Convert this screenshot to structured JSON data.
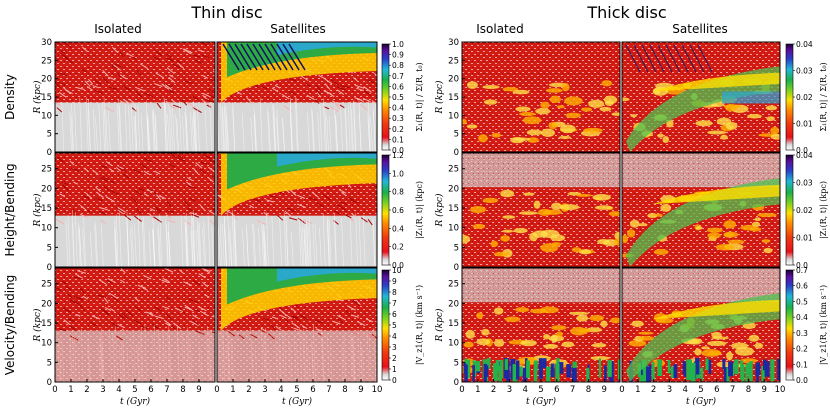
{
  "chart_data": {
    "type": "heatmap",
    "groups": [
      {
        "title": "Thin disc",
        "columns": [
          "Isolated",
          "Satellites"
        ],
        "xlabel": "t (Gyr)",
        "xlim": [
          0,
          10
        ],
        "xticks_left": [
          "0",
          "1",
          "2",
          "3",
          "4",
          "5",
          "6",
          "7",
          "8",
          "9"
        ],
        "xticks_right": [
          "0",
          "1",
          "2",
          "3",
          "4",
          "5",
          "6",
          "7",
          "8",
          "9",
          "10"
        ],
        "rows": [
          {
            "row_label": "Density",
            "ylabel": "R (kpc)",
            "ylim": [
              0,
              30
            ],
            "yticks": [
              "0",
              "5",
              "10",
              "15",
              "20",
              "25",
              "30"
            ],
            "colorbar_label": "Σ₁(R, t)| / Σ(R, t₀)",
            "clim": [
              0,
              1.0
            ],
            "colorbar_ticks": [
              "0.0",
              "0.1",
              "0.2",
              "0.3",
              "0.4",
              "0.5",
              "0.6",
              "0.7",
              "0.8",
              "0.9",
              "1.0"
            ]
          },
          {
            "row_label": "Height/Bending",
            "ylabel": "R (kpc)",
            "ylim": [
              0,
              29
            ],
            "yticks": [
              "0",
              "5",
              "10",
              "15",
              "20",
              "25"
            ],
            "colorbar_label": "|Z₁(R, t)| (kpc)",
            "clim": [
              0,
              1.2
            ],
            "colorbar_ticks": [
              "0.0",
              "0.2",
              "0.4",
              "0.6",
              "0.8",
              "1.0",
              "1.2"
            ]
          },
          {
            "row_label": "Velocity/Bending",
            "ylabel": "R (kpc)",
            "ylim": [
              0,
              29
            ],
            "yticks": [
              "0",
              "5",
              "10",
              "15",
              "20",
              "25"
            ],
            "colorbar_label": "|V_z1(R, t)| (km s⁻¹)",
            "clim": [
              0,
              10
            ],
            "colorbar_ticks": [
              "0",
              "1",
              "2",
              "3",
              "4",
              "5",
              "6",
              "7",
              "8",
              "9",
              "10"
            ]
          }
        ]
      },
      {
        "title": "Thick disc",
        "columns": [
          "Isolated",
          "Satellites"
        ],
        "xlabel": "t (Gyr)",
        "xlim": [
          0,
          10
        ],
        "xticks_left": [
          "0",
          "1",
          "2",
          "3",
          "4",
          "5",
          "6",
          "7",
          "8",
          "9"
        ],
        "xticks_right": [
          "0",
          "1",
          "2",
          "3",
          "4",
          "5",
          "6",
          "7",
          "8",
          "9",
          "10"
        ],
        "rows": [
          {
            "row_label": "",
            "ylabel": "R (kpc)",
            "ylim": [
              0,
              30
            ],
            "yticks": [
              "0",
              "5",
              "10",
              "15",
              "20",
              "25",
              "30"
            ],
            "colorbar_label": "Σ₁(R, t)| / Σ(R, t₀)",
            "clim": [
              0,
              0.04
            ],
            "colorbar_ticks": [
              "0.0",
              "0.01",
              "0.02",
              "0.03",
              "0.04"
            ]
          },
          {
            "row_label": "",
            "ylabel": "R (kpc)",
            "ylim": [
              0,
              29
            ],
            "yticks": [
              "0",
              "5",
              "10",
              "15",
              "20",
              "25"
            ],
            "colorbar_label": "|Z₁(R, t)| (kpc)",
            "clim": [
              0,
              0.04
            ],
            "colorbar_ticks": [
              "0.0",
              "0.01",
              "0.02",
              "0.03",
              "0.04"
            ]
          },
          {
            "row_label": "",
            "ylabel": "R (kpc)",
            "ylim": [
              0,
              29
            ],
            "yticks": [
              "0",
              "5",
              "10",
              "15",
              "20",
              "25"
            ],
            "colorbar_label": "|V_z1(R, t)| (km s⁻¹)",
            "clim": [
              0,
              0.7
            ],
            "colorbar_ticks": [
              "0.0",
              "0.1",
              "0.2",
              "0.3",
              "0.4",
              "0.5",
              "0.6",
              "0.7"
            ]
          }
        ]
      }
    ]
  }
}
